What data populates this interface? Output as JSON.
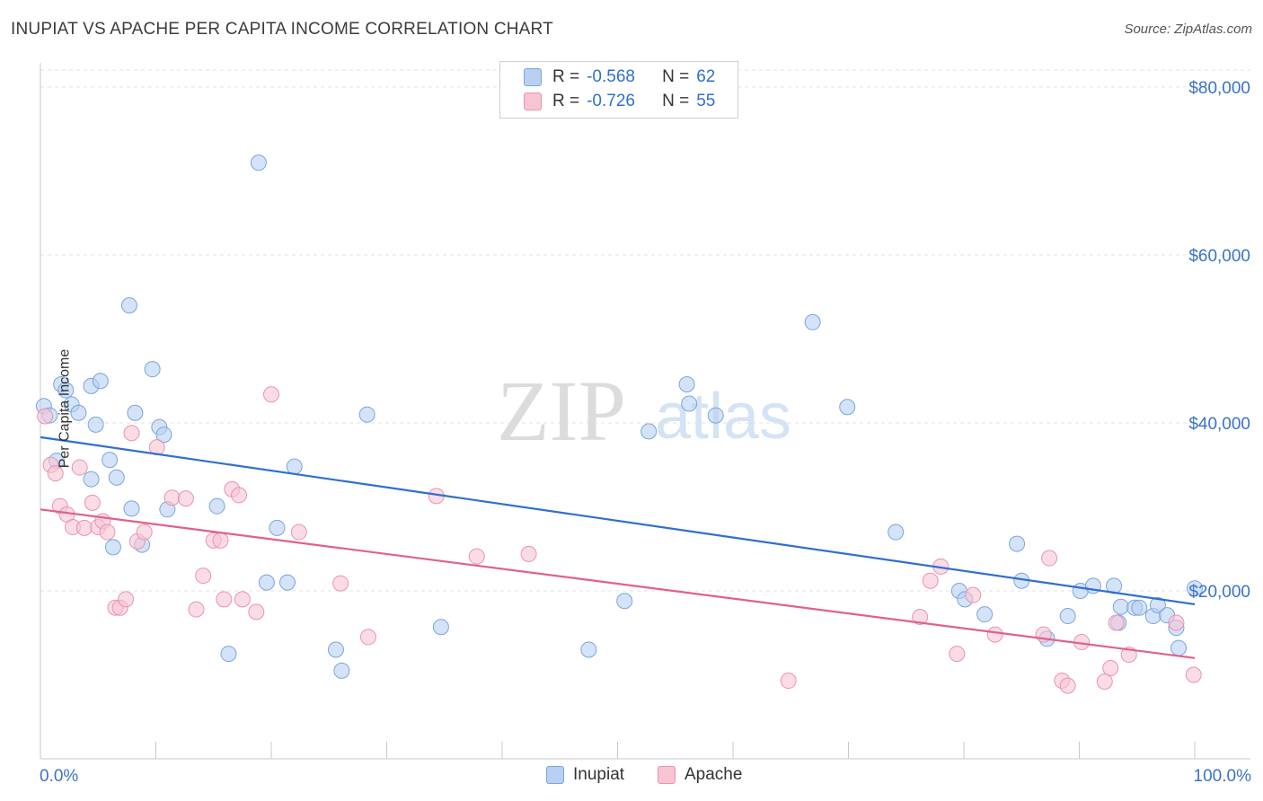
{
  "title": "INUPIAT VS APACHE PER CAPITA INCOME CORRELATION CHART",
  "source": "Source: ZipAtlas.com",
  "watermark": {
    "zip": "ZIP",
    "atlas": "atlas"
  },
  "legend": {
    "r_label": "R =",
    "n_label": "N =",
    "inupiat": {
      "r": "-0.568",
      "n": "62"
    },
    "apache": {
      "r": "-0.726",
      "n": "55"
    }
  },
  "colors": {
    "inupiat_fill": "#b8d0f2",
    "inupiat_stroke": "#7aa6dc",
    "inupiat_line": "#2f6fd0",
    "apache_fill": "#f7c4d4",
    "apache_stroke": "#eb93b0",
    "apache_line": "#e0608c",
    "axis_label": "#3a72c9"
  },
  "chart_data": {
    "type": "scatter",
    "title": "INUPIAT VS APACHE PER CAPITA INCOME CORRELATION CHART",
    "xlabel": "",
    "ylabel": "Per Capita Income",
    "xlim": [
      0,
      100
    ],
    "ylim": [
      0,
      82000
    ],
    "x_tick_labels": [
      "0.0%",
      "100.0%"
    ],
    "y_ticks": [
      20000,
      40000,
      60000,
      80000
    ],
    "y_tick_labels": [
      "$20,000",
      "$40,000",
      "$60,000",
      "$80,000"
    ],
    "grid": true,
    "legend_position": "top-center",
    "series": [
      {
        "name": "Inupiat",
        "trend": [
          [
            0,
            38300
          ],
          [
            100,
            18400
          ]
        ],
        "points": [
          [
            0.3,
            42000
          ],
          [
            0.8,
            40900
          ],
          [
            1.4,
            35500
          ],
          [
            1.8,
            44600
          ],
          [
            2.2,
            43900
          ],
          [
            2.7,
            42200
          ],
          [
            3.3,
            41200
          ],
          [
            4.4,
            44400
          ],
          [
            4.4,
            33300
          ],
          [
            4.8,
            39800
          ],
          [
            5.2,
            45000
          ],
          [
            6.0,
            35600
          ],
          [
            6.3,
            25200
          ],
          [
            6.6,
            33500
          ],
          [
            7.7,
            54000
          ],
          [
            7.9,
            29800
          ],
          [
            8.2,
            41200
          ],
          [
            8.8,
            25500
          ],
          [
            9.7,
            46400
          ],
          [
            10.3,
            39500
          ],
          [
            10.7,
            38600
          ],
          [
            11.0,
            29700
          ],
          [
            15.3,
            30100
          ],
          [
            16.3,
            12500
          ],
          [
            18.9,
            71000
          ],
          [
            19.6,
            21000
          ],
          [
            20.5,
            27500
          ],
          [
            21.4,
            21000
          ],
          [
            22.0,
            34800
          ],
          [
            25.6,
            13000
          ],
          [
            26.1,
            10500
          ],
          [
            28.3,
            41000
          ],
          [
            34.7,
            15700
          ],
          [
            47.5,
            13000
          ],
          [
            50.6,
            18800
          ],
          [
            52.7,
            39000
          ],
          [
            56.0,
            44600
          ],
          [
            56.2,
            42300
          ],
          [
            58.5,
            40900
          ],
          [
            66.9,
            52000
          ],
          [
            69.9,
            41900
          ],
          [
            74.1,
            27000
          ],
          [
            79.6,
            20000
          ],
          [
            80.1,
            19000
          ],
          [
            81.8,
            17200
          ],
          [
            84.6,
            25600
          ],
          [
            85.0,
            21200
          ],
          [
            87.2,
            14300
          ],
          [
            89.0,
            17000
          ],
          [
            90.1,
            20000
          ],
          [
            91.2,
            20600
          ],
          [
            93.0,
            20600
          ],
          [
            93.4,
            16200
          ],
          [
            93.6,
            18100
          ],
          [
            94.8,
            18000
          ],
          [
            95.2,
            18000
          ],
          [
            96.4,
            17000
          ],
          [
            96.8,
            18300
          ],
          [
            97.6,
            17100
          ],
          [
            98.4,
            15600
          ],
          [
            98.6,
            13200
          ],
          [
            100.0,
            20300
          ]
        ]
      },
      {
        "name": "Apache",
        "trend": [
          [
            0,
            29700
          ],
          [
            100,
            12000
          ]
        ],
        "points": [
          [
            0.4,
            40800
          ],
          [
            0.9,
            35000
          ],
          [
            1.3,
            34000
          ],
          [
            1.7,
            30100
          ],
          [
            2.3,
            29100
          ],
          [
            2.8,
            27600
          ],
          [
            3.4,
            34700
          ],
          [
            3.8,
            27500
          ],
          [
            4.5,
            30500
          ],
          [
            5.0,
            27600
          ],
          [
            5.4,
            28300
          ],
          [
            5.8,
            27000
          ],
          [
            6.5,
            18000
          ],
          [
            6.9,
            18000
          ],
          [
            7.4,
            19000
          ],
          [
            7.9,
            38800
          ],
          [
            8.4,
            25900
          ],
          [
            9.0,
            27000
          ],
          [
            10.1,
            37100
          ],
          [
            11.4,
            31100
          ],
          [
            12.6,
            31000
          ],
          [
            13.5,
            17800
          ],
          [
            14.1,
            21800
          ],
          [
            15.0,
            26000
          ],
          [
            15.6,
            26000
          ],
          [
            15.9,
            19000
          ],
          [
            16.6,
            32100
          ],
          [
            17.2,
            31400
          ],
          [
            17.5,
            19000
          ],
          [
            18.7,
            17500
          ],
          [
            20.0,
            43400
          ],
          [
            22.4,
            27000
          ],
          [
            26.0,
            20900
          ],
          [
            28.4,
            14500
          ],
          [
            34.3,
            31300
          ],
          [
            37.8,
            24100
          ],
          [
            42.3,
            24400
          ],
          [
            64.8,
            9300
          ],
          [
            77.1,
            21200
          ],
          [
            76.2,
            16900
          ],
          [
            78.0,
            22900
          ],
          [
            79.4,
            12500
          ],
          [
            80.8,
            19500
          ],
          [
            82.7,
            14800
          ],
          [
            86.9,
            14800
          ],
          [
            87.4,
            23900
          ],
          [
            88.5,
            9300
          ],
          [
            89.0,
            8700
          ],
          [
            90.2,
            13900
          ],
          [
            92.2,
            9200
          ],
          [
            92.7,
            10800
          ],
          [
            93.2,
            16200
          ],
          [
            94.3,
            12400
          ],
          [
            98.4,
            16200
          ],
          [
            99.9,
            10000
          ]
        ]
      }
    ]
  }
}
